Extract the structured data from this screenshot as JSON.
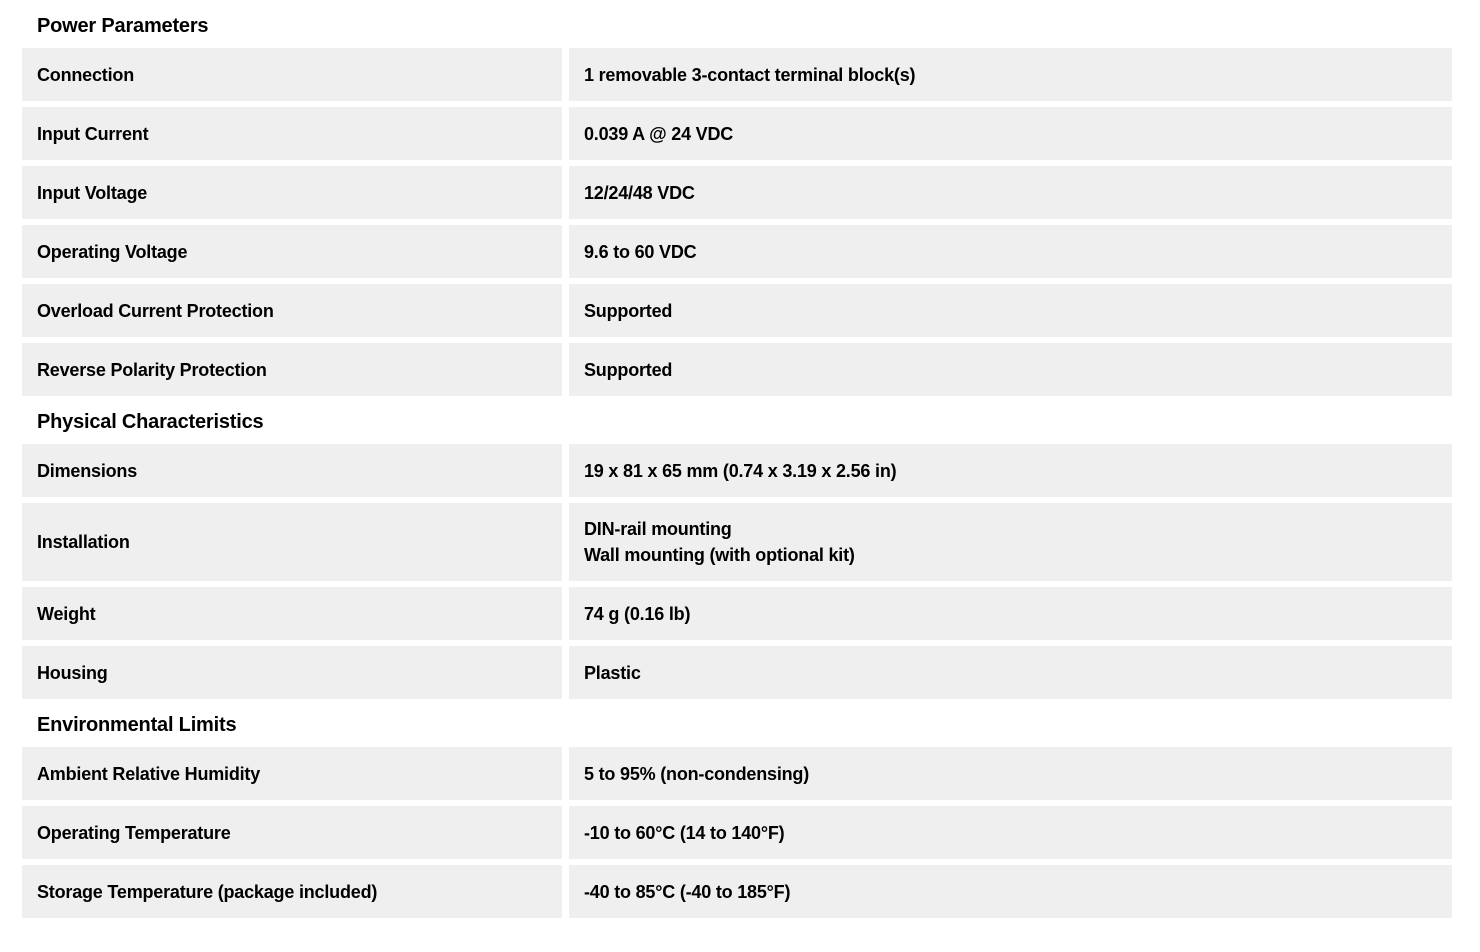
{
  "page": {
    "background_color": "#ffffff",
    "row_background_color": "#efefef",
    "text_color": "#000000"
  },
  "sections": [
    {
      "title": "Power Parameters",
      "rows": [
        {
          "label": "Connection",
          "values": [
            "1 removable 3-contact terminal block(s)"
          ]
        },
        {
          "label": "Input Current",
          "values": [
            "0.039 A @ 24 VDC"
          ]
        },
        {
          "label": "Input Voltage",
          "values": [
            "12/24/48 VDC"
          ]
        },
        {
          "label": "Operating Voltage",
          "values": [
            "9.6 to 60 VDC"
          ]
        },
        {
          "label": "Overload Current Protection",
          "values": [
            "Supported"
          ]
        },
        {
          "label": "Reverse Polarity Protection",
          "values": [
            "Supported"
          ]
        }
      ]
    },
    {
      "title": "Physical Characteristics",
      "rows": [
        {
          "label": "Dimensions",
          "values": [
            "19 x 81 x 65 mm (0.74 x 3.19 x 2.56 in)"
          ]
        },
        {
          "label": "Installation",
          "values": [
            "DIN-rail mounting",
            "Wall mounting (with optional kit)"
          ]
        },
        {
          "label": "Weight",
          "values": [
            "74 g (0.16 lb)"
          ]
        },
        {
          "label": "Housing",
          "values": [
            "Plastic"
          ]
        }
      ]
    },
    {
      "title": "Environmental Limits",
      "rows": [
        {
          "label": "Ambient Relative Humidity",
          "values": [
            "5 to 95% (non-condensing)"
          ]
        },
        {
          "label": "Operating Temperature",
          "values": [
            "-10 to 60°C (14 to 140°F)"
          ]
        },
        {
          "label": "Storage Temperature (package included)",
          "values": [
            "-40 to 85°C (-40 to 185°F)"
          ]
        }
      ]
    }
  ]
}
